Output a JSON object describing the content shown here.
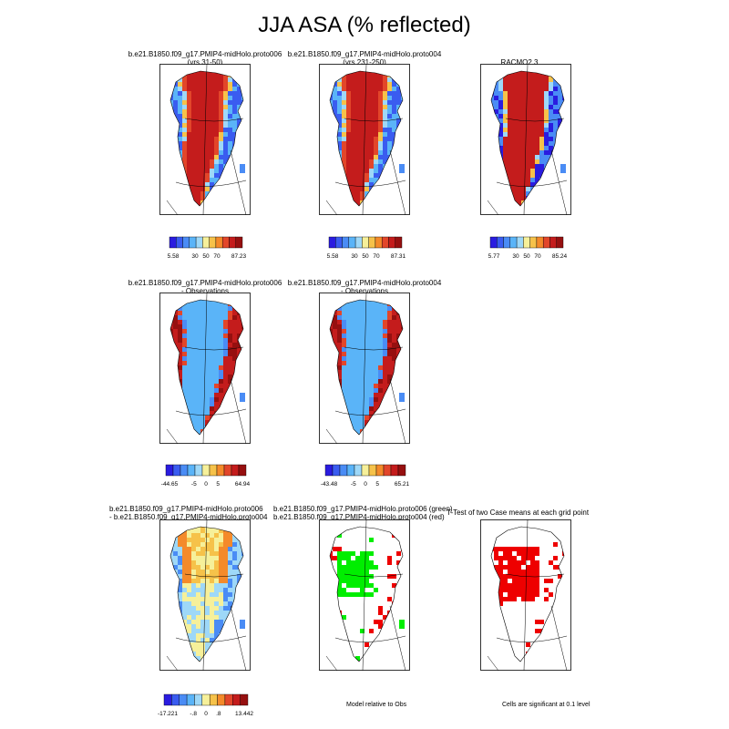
{
  "title": "JJA ASA (% reflected)",
  "colors": {
    "scale": [
      "#2a1ce0",
      "#3a5cf0",
      "#4a8cf5",
      "#5ab4f8",
      "#9ed8f8",
      "#f6f09a",
      "#f6c24a",
      "#f48a2a",
      "#e2462a",
      "#c41c1c",
      "#961010"
    ],
    "diff_scale": [
      "#2a1ce0",
      "#3a5cf0",
      "#4a8cf5",
      "#5ab4f8",
      "#9ed8f8",
      "#f6f09a",
      "#f6c24a",
      "#f48a2a",
      "#e2462a",
      "#c41c1c",
      "#961010"
    ],
    "significant_green": "#00ee00",
    "significant_red": "#ee0000"
  },
  "panels": [
    {
      "title_line1": "b.e21.B1850.f09_g17.PMIP4-midHolo.proto006",
      "title_line2": "(yrs 31-50)",
      "colorbar": {
        "min": "5.58",
        "ticks": [
          "30",
          "50",
          "70"
        ],
        "max": "87.23"
      }
    },
    {
      "title_line1": "b.e21.B1850.f09_g17.PMIP4-midHolo.proto004",
      "title_line2": "(yrs 231-250)",
      "colorbar": {
        "min": "5.58",
        "ticks": [
          "30",
          "50",
          "70"
        ],
        "max": "87.31"
      }
    },
    {
      "title_line1": "RACMO2.3",
      "title_line2": "",
      "colorbar": {
        "min": "5.77",
        "ticks": [
          "30",
          "50",
          "70"
        ],
        "max": "85.24"
      }
    },
    {
      "title_line1": "b.e21.B1850.f09_g17.PMIP4-midHolo.proto006",
      "title_line2": "- Observations",
      "colorbar": {
        "min": "-44.65",
        "ticks": [
          "-5",
          "0",
          "5"
        ],
        "max": "64.94"
      }
    },
    {
      "title_line1": "b.e21.B1850.f09_g17.PMIP4-midHolo.proto004",
      "title_line2": "- Observations",
      "colorbar": {
        "min": "-43.48",
        "ticks": [
          "-5",
          "0",
          "5"
        ],
        "max": "65.21"
      }
    },
    {
      "title_line1": "b.e21.B1850.f09_g17.PMIP4-midHolo.proto006",
      "title_line2": "- b.e21.B1850.f09_g17.PMIP4-midHolo.proto004",
      "colorbar": {
        "min": "-17.221",
        "ticks": [
          "-.8",
          "0",
          ".8"
        ],
        "max": "13.442"
      }
    },
    {
      "title_line1": "b.e21.B1850.f09_g17.PMIP4-midHolo.proto006 (green)",
      "title_line2": "b.e21.B1850.f09_g17.PMIP4-midHolo.proto004 (red)",
      "note": "Model relative to Obs"
    },
    {
      "title_line1": "T-Test of two Case means at each grid point",
      "title_line2": "",
      "note": "Cells are significant at 0.1 level"
    }
  ]
}
